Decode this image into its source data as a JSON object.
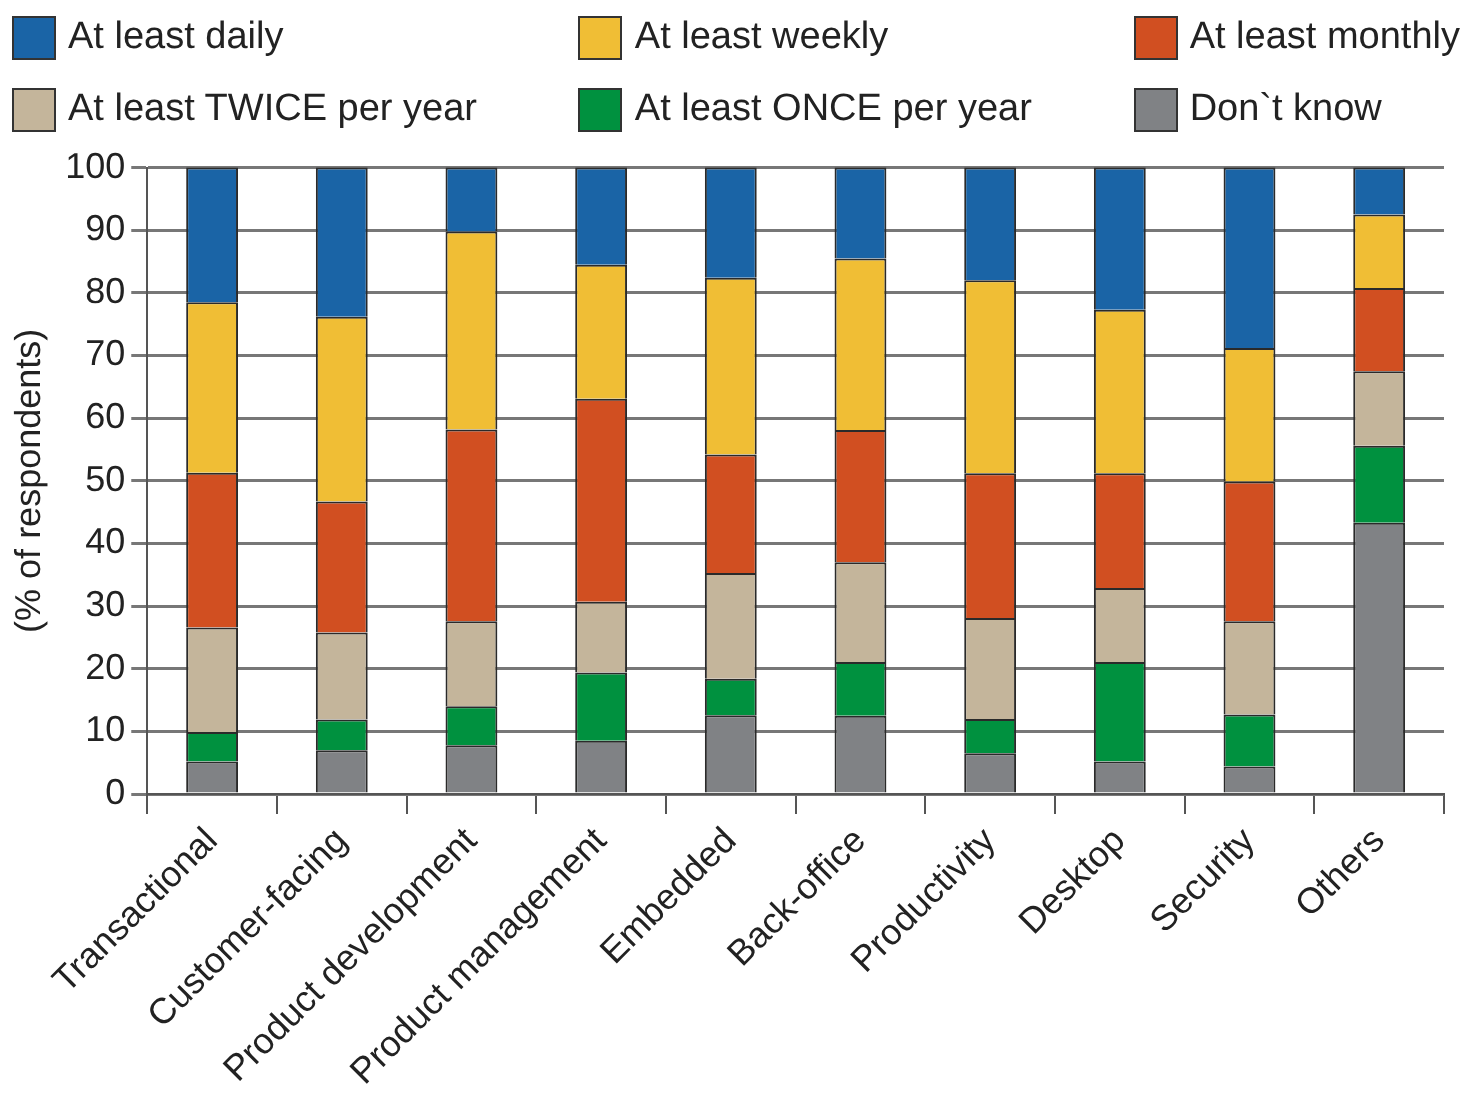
{
  "chart_data": {
    "type": "bar",
    "stacked": true,
    "ylabel": "(% of respondents)",
    "legend": "top",
    "grid": "y",
    "ylim": [
      0,
      100
    ],
    "yticks": [
      0,
      10,
      20,
      30,
      40,
      50,
      60,
      70,
      80,
      90,
      100
    ],
    "categories": [
      "Transactional",
      "Customer-facing",
      "Product development",
      "Product management",
      "Embedded",
      "Back-office",
      "Productivity",
      "Desktop",
      "Security",
      "Others"
    ],
    "series": [
      {
        "name": "Don`t know",
        "color": "#808285",
        "values": [
          5.2,
          7.0,
          7.8,
          8.5,
          12.6,
          12.5,
          6.5,
          5.2,
          4.4,
          43.3
        ]
      },
      {
        "name": "At least ONCE per year",
        "color": "#00913f",
        "values": [
          4.7,
          4.9,
          6.2,
          10.9,
          5.8,
          8.6,
          5.5,
          15.9,
          8.3,
          12.3
        ]
      },
      {
        "name": "At least TWICE per year",
        "color": "#c4b59b",
        "values": [
          16.7,
          13.9,
          13.6,
          11.3,
          16.9,
          15.9,
          16.1,
          11.8,
          14.9,
          11.9
        ]
      },
      {
        "name": "At least monthly",
        "color": "#d14f21",
        "values": [
          24.7,
          20.9,
          30.6,
          32.4,
          18.9,
          21.1,
          23.1,
          18.3,
          22.3,
          13.3
        ]
      },
      {
        "name": "At least weekly",
        "color": "#f0be35",
        "values": [
          27.2,
          29.5,
          31.6,
          21.4,
          28.2,
          27.4,
          30.8,
          26.1,
          21.3,
          11.7
        ]
      },
      {
        "name": "At least daily",
        "color": "#1a64a6",
        "values": [
          21.5,
          23.8,
          10.2,
          15.5,
          17.6,
          14.5,
          18.0,
          22.7,
          28.8,
          7.5
        ]
      }
    ]
  }
}
